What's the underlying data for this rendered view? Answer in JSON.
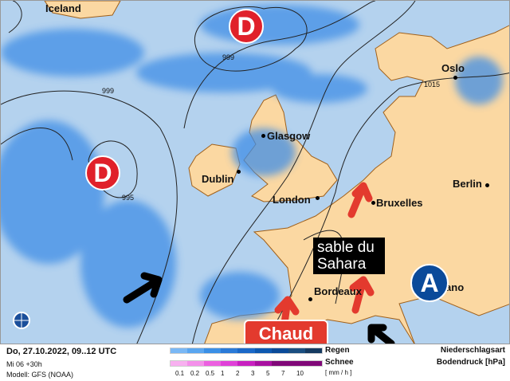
{
  "map": {
    "cities": [
      "Iceland",
      "Glasgow",
      "Dublin",
      "London",
      "Bruxelles",
      "Berlin",
      "Oslo",
      "Bordeaux",
      "Milano"
    ],
    "isobar_labels": [
      "999",
      "999",
      "995",
      "1015"
    ],
    "low_marker": "D",
    "high_marker": "A",
    "annotation_box": "sable du Sahara",
    "annotation_warm": "Chaud",
    "colors": {
      "sea": "#b4d2ee",
      "land": "#fbd8a2",
      "low": "#e0202a",
      "high": "#0a4a9a",
      "arrow_red": "#e33a2e"
    }
  },
  "legend": {
    "date": "Do, 27.10.2022, 09..12 UTC",
    "run": "Mi 06 +30h",
    "model": "Modell: GFS (NOAA)",
    "rain_label": "Regen",
    "snow_label": "Schnee",
    "unit": "[ mm / h ]",
    "ticks": [
      "0.1",
      "0.2",
      "0.5",
      "1",
      "2",
      "3",
      "5",
      "7",
      "10"
    ],
    "title1": "Niederschlagsart",
    "title2": "Bodendruck [hPa]",
    "rain_colors": [
      "#7ab8f5",
      "#5aa6f0",
      "#3a8fe6",
      "#2a7ad8",
      "#1a68c8",
      "#0d58b0",
      "#0a4a98",
      "#1a4e80",
      "#153a60"
    ],
    "snow_colors": [
      "#f8b0f0",
      "#f490ea",
      "#ec60e0",
      "#e040d8",
      "#c820c0",
      "#a810a0",
      "#800878",
      "#800878",
      "#800878"
    ]
  }
}
